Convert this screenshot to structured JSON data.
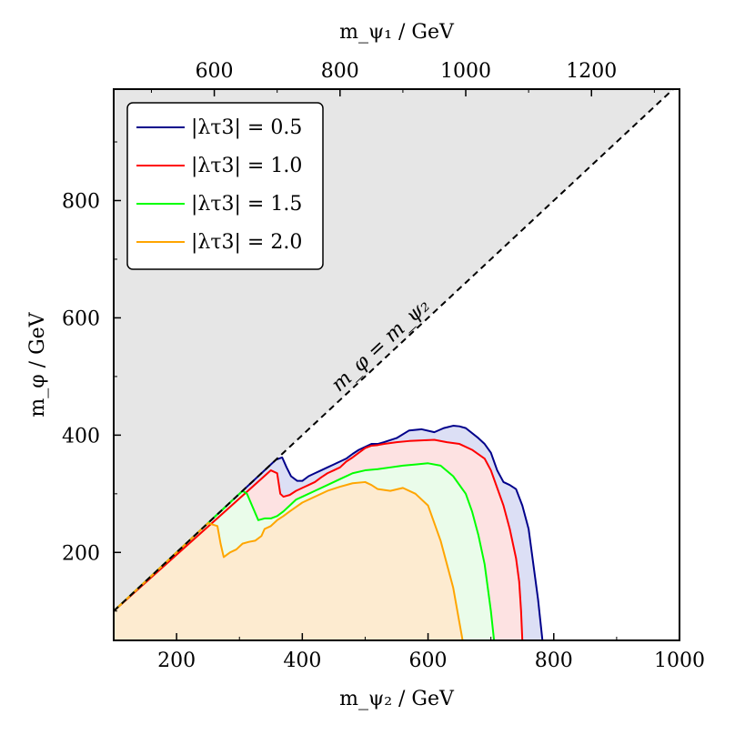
{
  "chart_data": {
    "type": "area",
    "xlabel": "m_ψ₂ / GeV",
    "ylabel": "m_φ / GeV",
    "top_xlabel": "m_ψ₁ / GeV",
    "xlim": [
      100,
      1000
    ],
    "ylim": [
      50,
      990
    ],
    "top_xlim": [
      440,
      1340
    ],
    "x_ticks": [
      200,
      400,
      600,
      800,
      1000
    ],
    "y_ticks": [
      200,
      400,
      600,
      800
    ],
    "top_ticks": [
      600,
      800,
      1000,
      1200
    ],
    "diagonal_label": "m_φ = m_ψ₂",
    "excluded_region_color": "#e6e6e6",
    "legend_position": "top-left",
    "series": [
      {
        "name": "|λτ3| = 0.5",
        "line_color": "#00008b",
        "fill_color": "#dcdff5",
        "x": [
          100,
          358,
          368,
          375,
          382,
          392,
          400,
          410,
          420,
          430,
          440,
          450,
          460,
          470,
          480,
          490,
          500,
          510,
          520,
          530,
          550,
          570,
          590,
          610,
          625,
          640,
          650,
          660,
          680,
          690,
          700,
          710,
          720,
          730,
          740,
          750,
          760,
          765,
          770,
          775,
          778,
          780,
          782
        ],
        "y": [
          100,
          358,
          362,
          345,
          330,
          322,
          322,
          330,
          335,
          340,
          345,
          350,
          355,
          360,
          368,
          375,
          380,
          385,
          385,
          388,
          395,
          408,
          410,
          405,
          412,
          416,
          415,
          412,
          395,
          385,
          370,
          340,
          320,
          315,
          308,
          280,
          240,
          200,
          160,
          120,
          90,
          70,
          50
        ]
      },
      {
        "name": "|λτ3| = 1.0",
        "line_color": "#ff0000",
        "fill_color": "#fde2e2",
        "x": [
          100,
          350,
          360,
          365,
          370,
          380,
          390,
          400,
          410,
          420,
          430,
          440,
          450,
          460,
          470,
          480,
          490,
          500,
          510,
          520,
          530,
          550,
          570,
          590,
          610,
          630,
          650,
          670,
          690,
          700,
          710,
          720,
          730,
          740,
          745,
          748,
          750
        ],
        "y": [
          100,
          340,
          335,
          300,
          295,
          298,
          305,
          310,
          315,
          320,
          328,
          335,
          340,
          345,
          355,
          362,
          370,
          378,
          382,
          383,
          385,
          388,
          390,
          391,
          392,
          388,
          385,
          375,
          360,
          340,
          310,
          280,
          240,
          190,
          150,
          100,
          50
        ]
      },
      {
        "name": "|λτ3| = 1.5",
        "line_color": "#00ff00",
        "fill_color": "#eafcea",
        "x": [
          100,
          305,
          312,
          320,
          330,
          340,
          350,
          360,
          370,
          380,
          390,
          400,
          420,
          440,
          460,
          480,
          500,
          520,
          540,
          560,
          580,
          600,
          620,
          640,
          660,
          670,
          680,
          690,
          695,
          700,
          703,
          705
        ],
        "y": [
          100,
          305,
          300,
          280,
          255,
          258,
          258,
          262,
          270,
          280,
          290,
          295,
          305,
          315,
          325,
          335,
          340,
          342,
          345,
          348,
          350,
          352,
          348,
          330,
          300,
          270,
          230,
          180,
          140,
          100,
          70,
          50
        ]
      },
      {
        "name": "|λτ3| = 2.0",
        "line_color": "#ffa500",
        "fill_color": "#fdebd0",
        "x": [
          100,
          250,
          265,
          270,
          275,
          285,
          295,
          305,
          315,
          325,
          335,
          340,
          350,
          360,
          370,
          380,
          400,
          420,
          440,
          460,
          480,
          500,
          510,
          520,
          540,
          560,
          580,
          600,
          620,
          630,
          640,
          645,
          650,
          655
        ],
        "y": [
          100,
          250,
          245,
          215,
          192,
          200,
          205,
          215,
          218,
          220,
          228,
          240,
          245,
          255,
          262,
          270,
          285,
          295,
          305,
          312,
          318,
          320,
          315,
          308,
          305,
          310,
          300,
          280,
          220,
          180,
          140,
          110,
          80,
          50
        ]
      }
    ]
  }
}
